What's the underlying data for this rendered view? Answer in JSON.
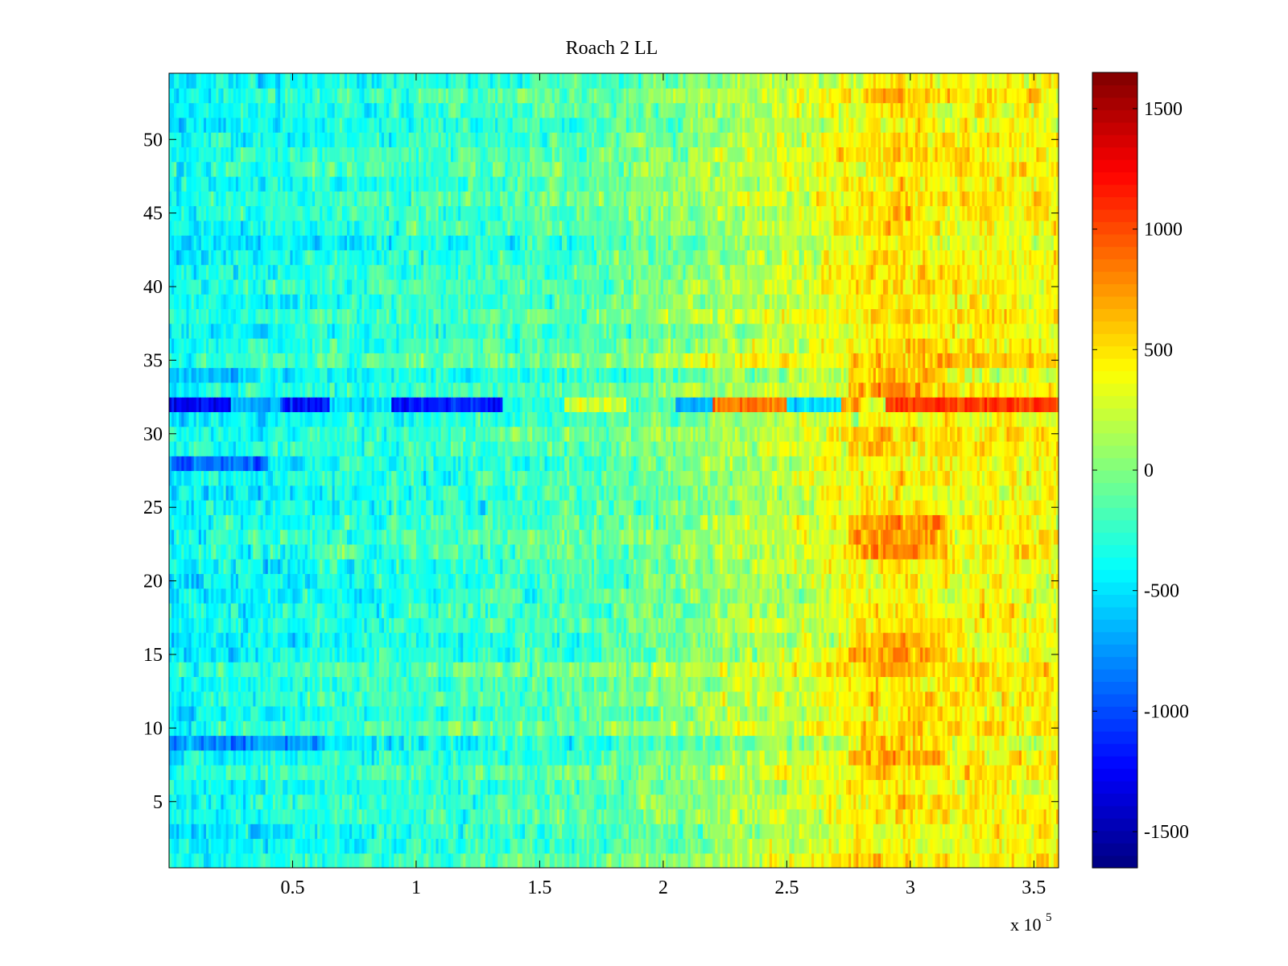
{
  "chart_data": {
    "type": "heatmap",
    "title": "Roach 2 LL",
    "xlabel": "",
    "ylabel": "",
    "x_exponent_label": {
      "prefix": "x 10",
      "exponent": "5"
    },
    "xlim": [
      0,
      3.6
    ],
    "ylim": [
      0.5,
      54.5
    ],
    "x_ticks": [
      0.5,
      1,
      1.5,
      2,
      2.5,
      3,
      3.5
    ],
    "x_tick_labels": [
      "0.5",
      "1",
      "1.5",
      "2",
      "2.5",
      "3",
      "3.5"
    ],
    "y_ticks": [
      5,
      10,
      15,
      20,
      25,
      30,
      35,
      40,
      45,
      50
    ],
    "y_tick_labels": [
      "5",
      "10",
      "15",
      "20",
      "25",
      "30",
      "35",
      "40",
      "45",
      "50"
    ],
    "rows": 54,
    "columns": 360,
    "colormap": "jet",
    "clim": [
      -1650,
      1650
    ],
    "colorbar": {
      "ticks": [
        -1500,
        -1000,
        -500,
        0,
        500,
        1000,
        1500
      ],
      "tick_labels": [
        "-1500",
        "-1000",
        "-500",
        "0",
        "500",
        "1000",
        "1500"
      ]
    },
    "trend": {
      "description": "mean value rises from left to right",
      "x_knots": [
        0,
        0.3,
        0.7,
        1.2,
        1.7,
        2.05,
        2.3,
        2.6,
        2.75,
        2.95,
        3.1,
        3.3,
        3.6
      ],
      "mean_values": [
        -420,
        -380,
        -300,
        -240,
        -160,
        0,
        130,
        260,
        380,
        500,
        440,
        420,
        400
      ]
    },
    "anomalous_row": {
      "row": 32,
      "segments": [
        {
          "x_start": 0.0,
          "x_end": 0.25,
          "value": -1250
        },
        {
          "x_start": 0.25,
          "x_end": 0.45,
          "value": -650
        },
        {
          "x_start": 0.45,
          "x_end": 0.65,
          "value": -1200
        },
        {
          "x_start": 0.65,
          "x_end": 0.9,
          "value": -500
        },
        {
          "x_start": 0.9,
          "x_end": 1.35,
          "value": -1150
        },
        {
          "x_start": 1.35,
          "x_end": 1.6,
          "value": -300
        },
        {
          "x_start": 1.6,
          "x_end": 1.85,
          "value": 250
        },
        {
          "x_start": 1.85,
          "x_end": 2.05,
          "value": -200
        },
        {
          "x_start": 2.05,
          "x_end": 2.2,
          "value": -650
        },
        {
          "x_start": 2.2,
          "x_end": 2.5,
          "value": 850
        },
        {
          "x_start": 2.5,
          "x_end": 2.72,
          "value": -550
        },
        {
          "x_start": 2.72,
          "x_end": 2.8,
          "value": 700
        },
        {
          "x_start": 2.8,
          "x_end": 2.9,
          "value": 300
        },
        {
          "x_start": 2.9,
          "x_end": 3.6,
          "value": 1050
        }
      ]
    },
    "hot_rows": {
      "rows": [
        8,
        9,
        15,
        16,
        22,
        23,
        24,
        33,
        34
      ],
      "x_start": 2.75,
      "x_end": 3.15,
      "extra_value": 320
    }
  }
}
